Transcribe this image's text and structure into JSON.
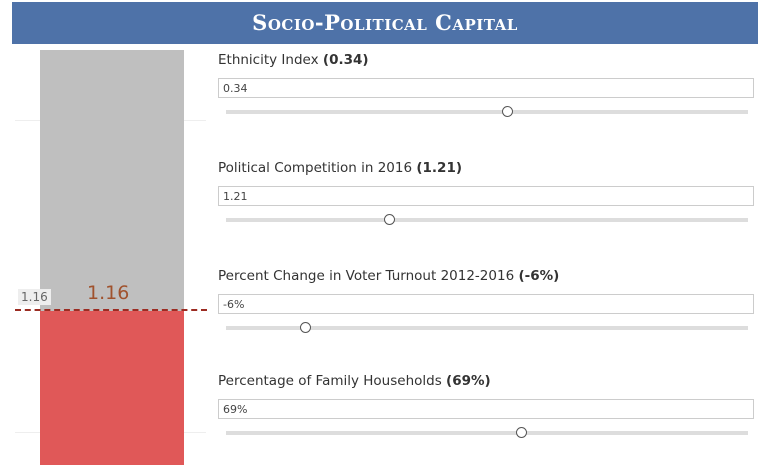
{
  "header": {
    "title": "Socio-Political Capital"
  },
  "gauge": {
    "reference_label": "1.16",
    "value_label": "1.16"
  },
  "parameters": [
    {
      "name": "Ethnicity Index",
      "value_label": "(0.34)",
      "input": "0.34"
    },
    {
      "name": "Political Competition in 2016",
      "value_label": "(1.21)",
      "input": "1.21"
    },
    {
      "name": "Percent Change in Voter Turnout 2012-2016",
      "value_label": "(-6%)",
      "input": "-6%"
    },
    {
      "name": "Percentage of Family Households",
      "value_label": "(69%)",
      "input": "69%"
    }
  ]
}
